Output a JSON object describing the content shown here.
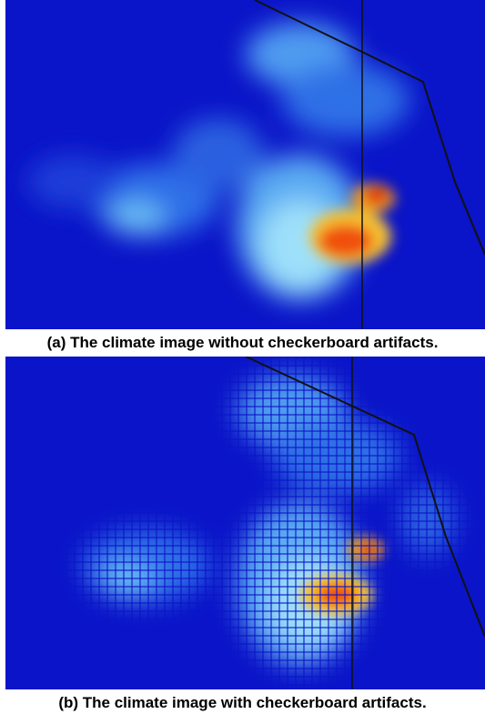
{
  "figure": {
    "caption_a": "(a) The climate image without checkerboard artifacts.",
    "caption_b": "(b) The climate image with checkerboard artifacts."
  }
}
